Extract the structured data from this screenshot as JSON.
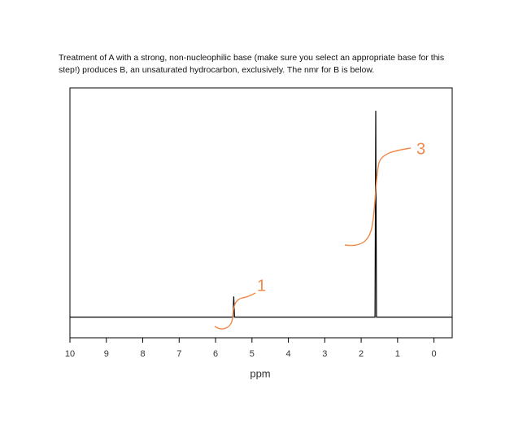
{
  "chart_data": {
    "type": "line",
    "description": "Treatment of A with a strong, non-nucleophilic base (make sure you select an appropriate base for this step!) produces B, an unsaturated hydrocarbon, exclusively. The nmr for B is below.",
    "x_label": "ppm",
    "x": [
      10,
      5.52,
      5.5,
      5.48,
      1.62,
      1.6,
      1.58,
      -0.5
    ],
    "series": [
      {
        "color": "#000000",
        "values": [
          0,
          0,
          9,
          0,
          0,
          90,
          0,
          0
        ]
      }
    ],
    "xlim": [
      10,
      -0.5
    ],
    "xticks": [
      10,
      9,
      8,
      7,
      6,
      5,
      4,
      3,
      2,
      1,
      0
    ],
    "ylim": [
      -9,
      100
    ],
    "annotations": [
      {
        "text": "1",
        "color": "#f0894a"
      },
      {
        "text": "3",
        "color": "#f0894a"
      }
    ]
  }
}
